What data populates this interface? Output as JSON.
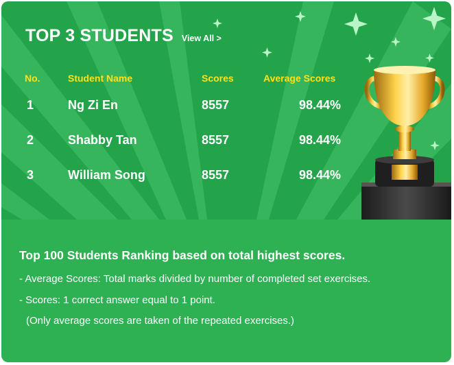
{
  "header": {
    "title": "TOP 3 STUDENTS",
    "view_all": "View All >"
  },
  "columns": {
    "no": "No.",
    "name": "Student Name",
    "scores": "Scores",
    "avg": "Average Scores"
  },
  "rows": [
    {
      "no": "1",
      "name": "Ng Zi En",
      "scores": "8557",
      "avg": "98.44%"
    },
    {
      "no": "2",
      "name": "Shabby Tan",
      "scores": "8557",
      "avg": "98.44%"
    },
    {
      "no": "3",
      "name": "William Song",
      "scores": "8557",
      "avg": "98.44%"
    }
  ],
  "info": {
    "heading": "Top 100 Students Ranking based on total highest scores.",
    "lines": [
      "- Average Scores: Total marks divided by number of completed set exercises.",
      "- Scores: 1 correct answer equal to 1 point.",
      "(Only average scores are taken of the repeated exercises.)"
    ]
  },
  "colors": {
    "card": "#2eb153",
    "rays_dark": "#23a44a",
    "rays_light": "#3fbe66",
    "header_text": "#ffe11a",
    "text": "#ffffff"
  },
  "icons": {
    "trophy": "trophy-icon",
    "sparkle": "sparkle-icon"
  }
}
